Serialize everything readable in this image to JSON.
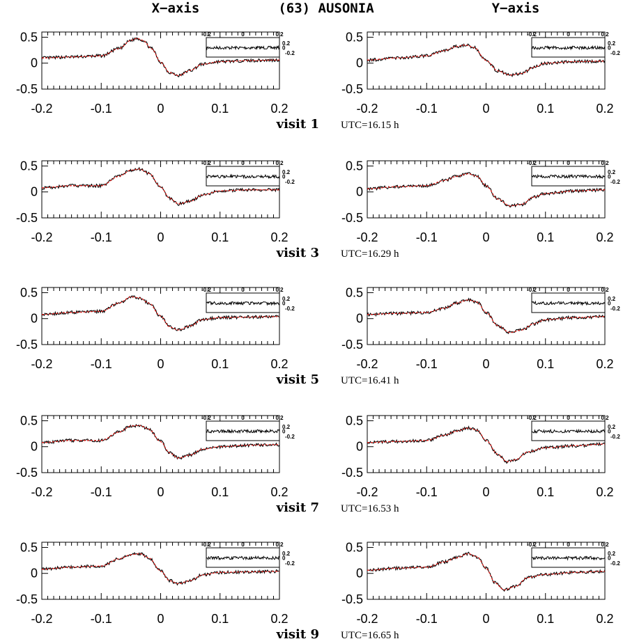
{
  "figure": {
    "title_left": "X−axis",
    "title_center": "(63) AUSONIA",
    "title_right": "Y−axis",
    "visits": [
      {
        "label": "visit  1",
        "utc": "UTC=16.15 h"
      },
      {
        "label": "visit  3",
        "utc": "UTC=16.29 h"
      },
      {
        "label": "visit  5",
        "utc": "UTC=16.41 h"
      },
      {
        "label": "visit  7",
        "utc": "UTC=16.53 h"
      },
      {
        "label": "visit  9",
        "utc": "UTC=16.65 h"
      }
    ]
  },
  "axes": {
    "x_ticks": [
      "-0.2",
      "-0.1",
      "0",
      "0.1",
      "0.2"
    ],
    "y_ticks": [
      "0.5",
      "0",
      "-0.5"
    ],
    "inset_x_ticks": [
      "-0.2",
      "0",
      "0.2"
    ],
    "inset_y_ticks": [
      "0.2",
      "0",
      "-0.2"
    ]
  },
  "colors": {
    "observed": "#000000",
    "model": "#e0201b",
    "axis": "#000000"
  },
  "chart_data": [
    {
      "type": "line",
      "title": "",
      "xlim": [
        -0.2,
        0.2
      ],
      "ylim": [
        -0.5,
        0.6
      ],
      "series": [
        {
          "x": [
            -0.2,
            -0.15,
            -0.1,
            -0.07,
            -0.05,
            -0.04,
            -0.03,
            -0.015,
            0,
            0.015,
            0.03,
            0.05,
            0.07,
            0.1,
            0.15,
            0.2
          ],
          "values": [
            0.1,
            0.12,
            0.14,
            0.28,
            0.44,
            0.48,
            0.44,
            0.28,
            0.02,
            -0.18,
            -0.24,
            -0.14,
            -0.02,
            0.03,
            0.05,
            0.06
          ]
        }
      ]
    },
    {
      "type": "line",
      "title": "",
      "xlim": [
        -0.2,
        0.2
      ],
      "ylim": [
        -0.5,
        0.6
      ],
      "series": [
        {
          "x": [
            -0.2,
            -0.15,
            -0.1,
            -0.07,
            -0.05,
            -0.035,
            -0.02,
            0,
            0.02,
            0.04,
            0.06,
            0.08,
            0.1,
            0.15,
            0.2
          ],
          "values": [
            0.06,
            0.1,
            0.14,
            0.24,
            0.32,
            0.35,
            0.3,
            0.05,
            -0.15,
            -0.23,
            -0.2,
            -0.08,
            0,
            0.03,
            0.04
          ]
        }
      ]
    },
    {
      "type": "line",
      "title": "",
      "xlim": [
        -0.2,
        0.2
      ],
      "ylim": [
        -0.5,
        0.6
      ],
      "series": [
        {
          "x": [
            -0.2,
            -0.15,
            -0.1,
            -0.07,
            -0.05,
            -0.035,
            -0.02,
            0,
            0.015,
            0.03,
            0.05,
            0.07,
            0.1,
            0.15,
            0.2
          ],
          "values": [
            0.08,
            0.12,
            0.12,
            0.3,
            0.42,
            0.44,
            0.36,
            0.1,
            -0.12,
            -0.23,
            -0.18,
            -0.06,
            0.02,
            0.04,
            0.04
          ]
        }
      ]
    },
    {
      "type": "line",
      "title": "",
      "xlim": [
        -0.2,
        0.2
      ],
      "ylim": [
        -0.5,
        0.6
      ],
      "series": [
        {
          "x": [
            -0.2,
            -0.15,
            -0.1,
            -0.07,
            -0.05,
            -0.03,
            -0.015,
            0,
            0.02,
            0.04,
            0.06,
            0.08,
            0.1,
            0.15,
            0.2
          ],
          "values": [
            0.06,
            0.1,
            0.12,
            0.22,
            0.3,
            0.35,
            0.3,
            0.12,
            -0.14,
            -0.27,
            -0.24,
            -0.1,
            -0.03,
            0.02,
            0.04
          ]
        }
      ]
    },
    {
      "type": "line",
      "title": "",
      "xlim": [
        -0.2,
        0.2
      ],
      "ylim": [
        -0.5,
        0.6
      ],
      "series": [
        {
          "x": [
            -0.2,
            -0.15,
            -0.1,
            -0.07,
            -0.05,
            -0.035,
            -0.02,
            0,
            0.015,
            0.03,
            0.05,
            0.07,
            0.1,
            0.15,
            0.2
          ],
          "values": [
            0.08,
            0.12,
            0.14,
            0.3,
            0.42,
            0.4,
            0.3,
            0.05,
            -0.16,
            -0.22,
            -0.14,
            -0.02,
            0.02,
            0.03,
            0.04
          ]
        }
      ]
    },
    {
      "type": "line",
      "title": "",
      "xlim": [
        -0.2,
        0.2
      ],
      "ylim": [
        -0.5,
        0.6
      ],
      "series": [
        {
          "x": [
            -0.2,
            -0.15,
            -0.1,
            -0.07,
            -0.05,
            -0.03,
            -0.015,
            0,
            0.02,
            0.04,
            0.06,
            0.08,
            0.1,
            0.15,
            0.2
          ],
          "values": [
            0.08,
            0.1,
            0.12,
            0.2,
            0.3,
            0.36,
            0.32,
            0.12,
            -0.14,
            -0.27,
            -0.22,
            -0.1,
            -0.02,
            0.02,
            0.04
          ]
        }
      ]
    },
    {
      "type": "line",
      "title": "",
      "xlim": [
        -0.2,
        0.2
      ],
      "ylim": [
        -0.5,
        0.6
      ],
      "series": [
        {
          "x": [
            -0.2,
            -0.15,
            -0.1,
            -0.07,
            -0.05,
            -0.035,
            -0.02,
            0,
            0.015,
            0.03,
            0.05,
            0.07,
            0.1,
            0.15,
            0.2
          ],
          "values": [
            0.08,
            0.12,
            0.12,
            0.28,
            0.4,
            0.41,
            0.34,
            0.1,
            -0.12,
            -0.22,
            -0.16,
            -0.05,
            0,
            0.03,
            0.04
          ]
        }
      ]
    },
    {
      "type": "line",
      "title": "",
      "xlim": [
        -0.2,
        0.2
      ],
      "ylim": [
        -0.5,
        0.6
      ],
      "series": [
        {
          "x": [
            -0.2,
            -0.15,
            -0.1,
            -0.07,
            -0.05,
            -0.03,
            -0.015,
            0,
            0.02,
            0.035,
            0.05,
            0.07,
            0.1,
            0.15,
            0.2
          ],
          "values": [
            0.08,
            0.1,
            0.12,
            0.22,
            0.3,
            0.36,
            0.32,
            0.12,
            -0.15,
            -0.29,
            -0.25,
            -0.1,
            -0.02,
            0.02,
            0.05
          ]
        }
      ]
    },
    {
      "type": "line",
      "title": "",
      "xlim": [
        -0.2,
        0.2
      ],
      "ylim": [
        -0.5,
        0.6
      ],
      "series": [
        {
          "x": [
            -0.2,
            -0.15,
            -0.1,
            -0.07,
            -0.05,
            -0.035,
            -0.02,
            0,
            0.015,
            0.03,
            0.05,
            0.07,
            0.1,
            0.15,
            0.2
          ],
          "values": [
            0.08,
            0.12,
            0.14,
            0.28,
            0.36,
            0.38,
            0.3,
            0.05,
            -0.14,
            -0.2,
            -0.14,
            -0.03,
            0.02,
            0.03,
            0.04
          ]
        }
      ]
    },
    {
      "type": "line",
      "title": "",
      "xlim": [
        -0.2,
        0.2
      ],
      "ylim": [
        -0.5,
        0.6
      ],
      "series": [
        {
          "x": [
            -0.2,
            -0.15,
            -0.1,
            -0.07,
            -0.05,
            -0.03,
            -0.015,
            0,
            0.015,
            0.03,
            0.05,
            0.07,
            0.1,
            0.15,
            0.2
          ],
          "values": [
            0.06,
            0.1,
            0.12,
            0.22,
            0.3,
            0.38,
            0.32,
            0.1,
            -0.18,
            -0.32,
            -0.25,
            -0.08,
            -0.02,
            0.02,
            0.04
          ]
        }
      ]
    }
  ]
}
